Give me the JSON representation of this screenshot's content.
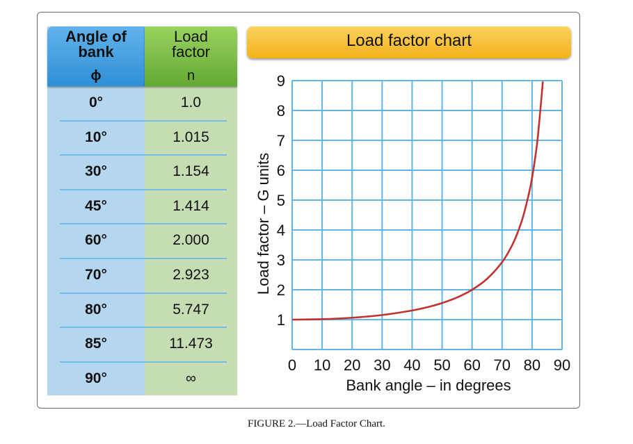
{
  "table": {
    "header_bank": [
      "Angle of",
      "bank"
    ],
    "header_bank_symbol": "ϕ",
    "header_load": [
      "Load",
      "factor"
    ],
    "header_load_symbol": "n",
    "rows": [
      {
        "bank": "0°",
        "load": "1.0"
      },
      {
        "bank": "10°",
        "load": "1.015"
      },
      {
        "bank": "30°",
        "load": "1.154"
      },
      {
        "bank": "45°",
        "load": "1.414"
      },
      {
        "bank": "60°",
        "load": "2.000"
      },
      {
        "bank": "70°",
        "load": "2.923"
      },
      {
        "bank": "80°",
        "load": "5.747"
      },
      {
        "bank": "85°",
        "load": "11.473"
      },
      {
        "bank": "90°",
        "load": "∞"
      }
    ]
  },
  "chart_data": {
    "type": "line",
    "title": "Load factor chart",
    "xlabel": "Bank angle – in degrees",
    "ylabel": "Load factor – G units",
    "xlim": [
      0,
      90
    ],
    "ylim": [
      0,
      9
    ],
    "xticks": [
      0,
      10,
      20,
      30,
      40,
      50,
      60,
      70,
      80,
      90
    ],
    "yticks": [
      1,
      2,
      3,
      4,
      5,
      6,
      7,
      8,
      9
    ],
    "grid": true,
    "series": [
      {
        "x": [
          0,
          10,
          20,
          30,
          40,
          45,
          50,
          55,
          60,
          65,
          70,
          73,
          75,
          77,
          79,
          80,
          81,
          82,
          83.6
        ],
        "y": [
          1.0,
          1.015,
          1.064,
          1.154,
          1.305,
          1.414,
          1.556,
          1.743,
          2.0,
          2.366,
          2.923,
          3.42,
          3.864,
          4.445,
          5.241,
          5.747,
          6.392,
          7.185,
          8.97
        ],
        "color": "#c0312f"
      }
    ],
    "colors": {
      "grid": "#5fb6e6",
      "axis_text": "#111111",
      "line": "#c0312f"
    }
  },
  "caption": "FIGURE 2.—Load Factor Chart."
}
